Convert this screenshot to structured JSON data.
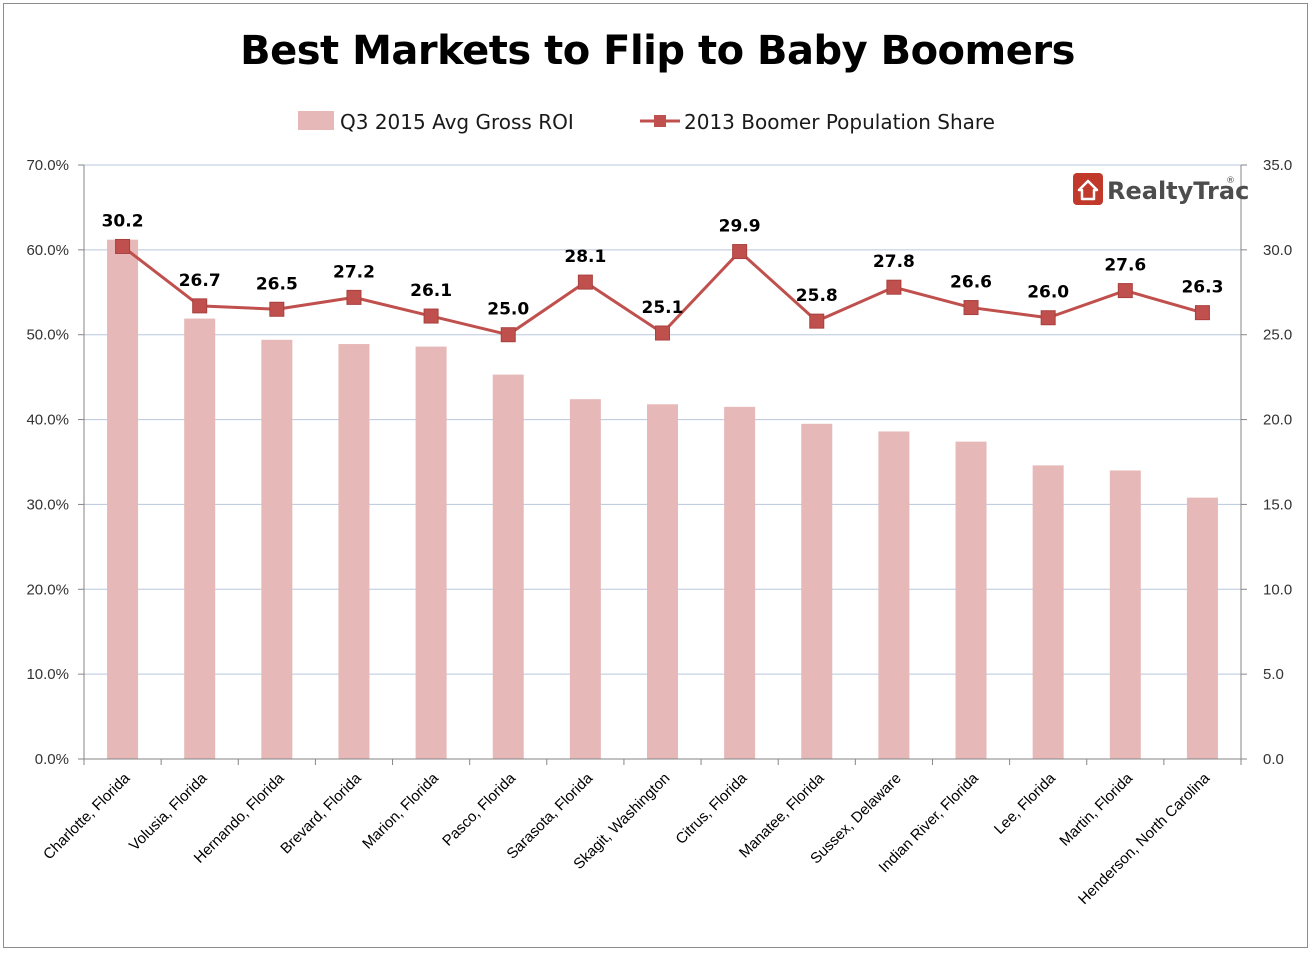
{
  "chart_data": {
    "title": "Best Markets to Flip to Baby Boomers",
    "type": "bar+line",
    "categories": [
      "Charlotte, Florida",
      "Volusia, Florida",
      "Hernando, Florida",
      "Brevard, Florida",
      "Marion, Florida",
      "Pasco, Florida",
      "Sarasota, Florida",
      "Skagit, Washington",
      "Citrus, Florida",
      "Manatee, Florida",
      "Sussex, Delaware",
      "Indian River, Florida",
      "Lee, Florida",
      "Martin, Florida",
      "Henderson, North Carolina"
    ],
    "series": [
      {
        "name": "Q3 2015 Avg Gross ROI",
        "type": "bar",
        "axis": "left",
        "color": "#e6b8b7",
        "values": [
          61.2,
          51.9,
          49.4,
          48.9,
          48.6,
          45.3,
          42.4,
          41.8,
          41.5,
          39.5,
          38.6,
          37.4,
          34.6,
          34.0,
          30.8
        ]
      },
      {
        "name": "2013 Boomer Population Share",
        "type": "line",
        "axis": "right",
        "color": "#c0504d",
        "values": [
          30.2,
          26.7,
          26.5,
          27.2,
          26.1,
          25.0,
          28.1,
          25.1,
          29.9,
          25.8,
          27.8,
          26.6,
          26.0,
          27.6,
          26.3
        ],
        "data_labels": [
          "30.2",
          "26.7",
          "26.5",
          "27.2",
          "26.1",
          "25.0",
          "28.1",
          "25.1",
          "29.9",
          "25.8",
          "27.8",
          "26.6",
          "26.0",
          "27.6",
          "26.3"
        ]
      }
    ],
    "y_left": {
      "ylim": [
        0,
        70
      ],
      "ticks": [
        "0.0%",
        "10.0%",
        "20.0%",
        "30.0%",
        "40.0%",
        "50.0%",
        "60.0%",
        "70.0%"
      ]
    },
    "y_right": {
      "ylim": [
        0,
        35
      ],
      "ticks": [
        "0.0",
        "5.0",
        "10.0",
        "15.0",
        "20.0",
        "25.0",
        "30.0",
        "35.0"
      ]
    },
    "grid": true,
    "legend": "top-center"
  },
  "logo": {
    "text": "RealtyTrac",
    "trademark": "®",
    "color": "#c0392b"
  }
}
